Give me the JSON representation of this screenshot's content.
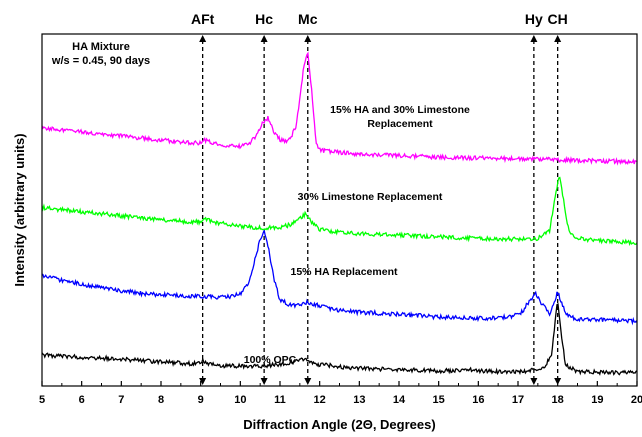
{
  "chart_data": {
    "type": "line",
    "title": "",
    "xlabel": "Diffraction Angle (2Θ, Degrees)",
    "ylabel": "Intensity (arbitrary units)",
    "xlim": [
      5,
      20
    ],
    "xticks": [
      "5",
      "6",
      "7",
      "8",
      "9",
      "10",
      "11",
      "12",
      "13",
      "14",
      "15",
      "16",
      "17",
      "18",
      "19",
      "20"
    ],
    "y_ticks_shown": false,
    "grid": false,
    "inset_text": [
      "HA Mixture",
      "w/s = 0.45, 90 days"
    ],
    "reference_lines": [
      {
        "label": "AFt",
        "x": 9.05
      },
      {
        "label": "Hc",
        "x": 10.6
      },
      {
        "label": "Mc",
        "x": 11.7
      },
      {
        "label": "Hy",
        "x": 17.4
      },
      {
        "label": "CH",
        "x": 18.0
      }
    ],
    "series": [
      {
        "name": "100% OPC",
        "label_lines": [
          "100% OPC"
        ],
        "color": "#000000",
        "x": [
          5.0,
          5.5,
          6.0,
          6.5,
          7.0,
          7.5,
          8.0,
          8.5,
          8.9,
          9.05,
          9.2,
          9.5,
          10.0,
          10.5,
          11.0,
          11.4,
          11.6,
          11.7,
          11.85,
          12.0,
          12.1,
          12.3,
          12.8,
          13.5,
          14.0,
          15.0,
          15.8,
          16.5,
          17.0,
          17.5,
          17.7,
          17.85,
          18.0,
          18.1,
          18.2,
          18.5,
          19.0,
          19.5,
          20.0
        ],
        "y": [
          7.6,
          7.3,
          7.0,
          6.8,
          6.5,
          6.2,
          5.9,
          5.6,
          5.4,
          6.2,
          5.4,
          5.0,
          4.8,
          4.9,
          5.2,
          6.0,
          6.7,
          6.1,
          5.4,
          5.1,
          5.3,
          4.9,
          4.5,
          4.1,
          4.0,
          3.7,
          3.9,
          3.5,
          3.5,
          4.0,
          5.0,
          8.0,
          21.0,
          12.0,
          5.0,
          3.6,
          3.4,
          3.2,
          3.2
        ]
      },
      {
        "name": "15% HA Replacement",
        "label_lines": [
          "15% HA Replacement"
        ],
        "color": "#0000ff",
        "x": [
          5.0,
          5.5,
          6.0,
          6.5,
          7.0,
          7.5,
          8.0,
          8.5,
          9.0,
          9.5,
          9.8,
          10.0,
          10.2,
          10.35,
          10.5,
          10.6,
          10.7,
          10.85,
          11.0,
          11.2,
          11.5,
          11.7,
          12.0,
          12.5,
          13.0,
          14.0,
          15.0,
          16.0,
          16.8,
          17.1,
          17.3,
          17.45,
          17.6,
          17.8,
          17.9,
          18.0,
          18.1,
          18.25,
          18.5,
          19.0,
          19.5,
          20.0
        ],
        "y": [
          26.8,
          25.8,
          24.8,
          24.0,
          23.2,
          22.6,
          22.3,
          22.0,
          21.8,
          21.6,
          21.8,
          22.6,
          25.0,
          30.0,
          36.0,
          37.5,
          34.0,
          26.0,
          21.0,
          20.0,
          19.5,
          20.5,
          19.5,
          18.5,
          18.0,
          17.5,
          16.8,
          16.5,
          16.8,
          18.0,
          21.0,
          22.5,
          20.0,
          17.5,
          20.0,
          23.0,
          20.0,
          17.0,
          16.4,
          16.2,
          16.0,
          15.8
        ]
      },
      {
        "name": "30% Limestone Replacement",
        "label_lines": [
          "30% Limestone Replacement"
        ],
        "color": "#00ff00",
        "x": [
          5.0,
          5.5,
          6.0,
          6.5,
          7.0,
          7.5,
          8.0,
          8.5,
          9.0,
          9.1,
          9.3,
          9.6,
          10.0,
          10.5,
          11.0,
          11.3,
          11.5,
          11.65,
          11.8,
          12.0,
          12.5,
          13.0,
          14.0,
          15.0,
          16.0,
          17.0,
          17.5,
          17.8,
          17.95,
          18.05,
          18.15,
          18.3,
          18.5,
          19.0,
          19.5,
          20.0
        ],
        "y": [
          43.5,
          43.0,
          42.5,
          42.0,
          41.5,
          41.0,
          40.6,
          40.2,
          40.0,
          41.0,
          40.0,
          39.6,
          39.0,
          38.6,
          38.6,
          39.5,
          41.0,
          42.0,
          40.0,
          38.2,
          37.5,
          37.2,
          36.8,
          36.4,
          36.0,
          35.8,
          36.0,
          38.0,
          47.0,
          51.5,
          45.0,
          37.0,
          36.0,
          35.5,
          35.2,
          35.0
        ]
      },
      {
        "name": "15% HA and 30% Limestone Replacement",
        "label_lines": [
          "15% HA and 30% Limestone",
          "Replacement"
        ],
        "color": "#ff00ff",
        "x": [
          5.0,
          5.5,
          6.0,
          6.5,
          7.0,
          7.5,
          8.0,
          8.5,
          9.0,
          9.1,
          9.3,
          9.6,
          10.0,
          10.2,
          10.4,
          10.55,
          10.7,
          10.85,
          11.0,
          11.2,
          11.4,
          11.5,
          11.6,
          11.7,
          11.8,
          11.9,
          12.0,
          12.5,
          13.0,
          14.0,
          15.0,
          16.0,
          17.0,
          18.0,
          18.5,
          19.0,
          19.5,
          20.0
        ],
        "y": [
          63.0,
          62.5,
          62.0,
          61.5,
          61.0,
          60.5,
          60.0,
          59.6,
          59.2,
          60.0,
          59.2,
          58.8,
          58.4,
          59.0,
          61.0,
          64.0,
          65.5,
          62.0,
          60.0,
          59.5,
          63.0,
          70.0,
          78.0,
          81.0,
          72.0,
          60.0,
          57.5,
          57.0,
          56.5,
          56.2,
          55.8,
          55.6,
          55.4,
          55.2,
          55.0,
          54.9,
          54.8,
          54.6
        ]
      }
    ]
  }
}
